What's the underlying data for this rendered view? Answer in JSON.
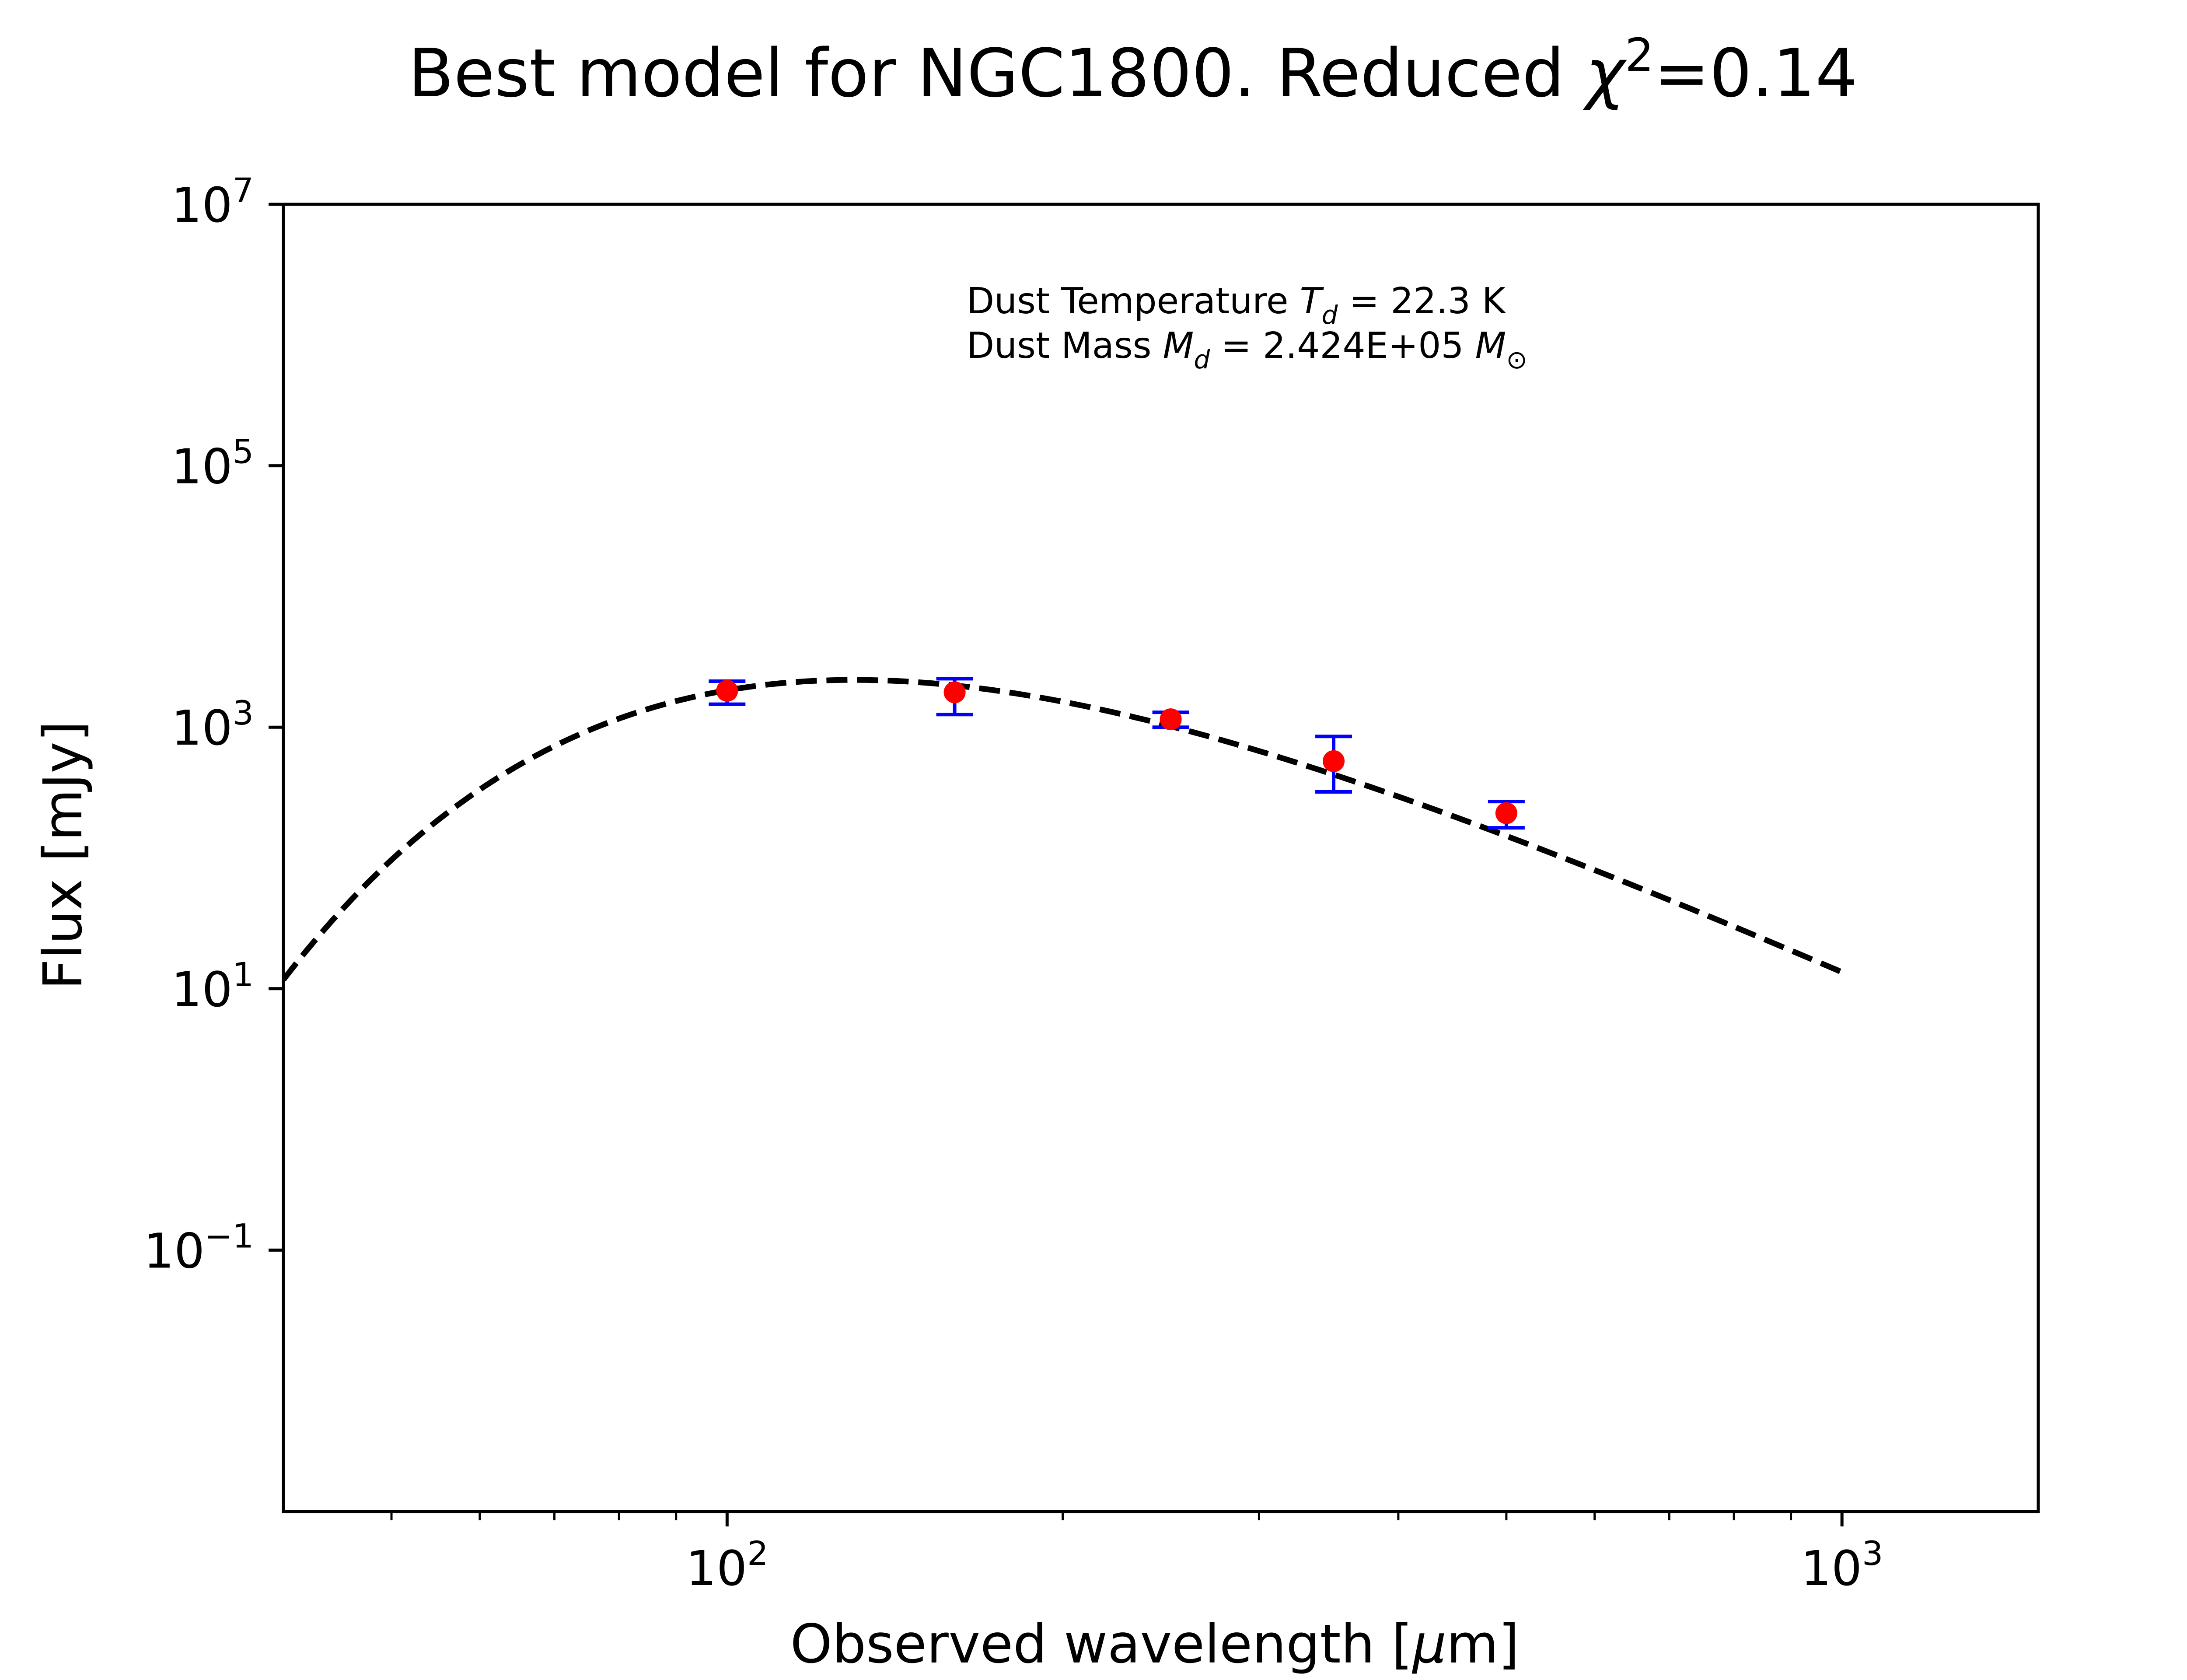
{
  "chart_data": {
    "type": "scatter",
    "title": {
      "prefix": "Best model for NGC1800. Reduced ",
      "symbol": "χ",
      "superscript": "2",
      "suffix": "=0.14"
    },
    "xlabel": {
      "prefix": "Observed wavelength [",
      "symbol": "μ",
      "suffix": "m]"
    },
    "ylabel": "Flux [mJy]",
    "xscale": "log",
    "yscale": "log",
    "xlim": [
      40,
      1500
    ],
    "ylim": [
      0.001,
      10000000
    ],
    "grid": false,
    "x_ticks": [
      {
        "value": 100,
        "base": "10",
        "exp": "2"
      },
      {
        "value": 1000,
        "base": "10",
        "exp": "3"
      }
    ],
    "y_ticks": [
      {
        "value": 0.1,
        "base": "10",
        "exp": "−1"
      },
      {
        "value": 10,
        "base": "10",
        "exp": "1"
      },
      {
        "value": 1000,
        "base": "10",
        "exp": "3"
      },
      {
        "value": 100000,
        "base": "10",
        "exp": "5"
      },
      {
        "value": 10000000,
        "base": "10",
        "exp": "7"
      }
    ],
    "annotations": {
      "temperature": {
        "prefix": "Dust Temperature ",
        "symbol": "T",
        "subscript": "d",
        "suffix": " = 22.3 K"
      },
      "mass": {
        "prefix": "Dust Mass ",
        "symbol": "M",
        "subscript": "d",
        "middle": " = 2.424E+05 ",
        "unit_symbol": "M",
        "unit_subscript": "⊙"
      }
    },
    "series": [
      {
        "type": "errorbar",
        "marker_color": "#ff0000",
        "errorbar_color": "#0000ff",
        "points": [
          {
            "x": 100,
            "y": 1900,
            "ylo": 1500,
            "yhi": 2250
          },
          {
            "x": 160,
            "y": 1850,
            "ylo": 1250,
            "yhi": 2350
          },
          {
            "x": 250,
            "y": 1150,
            "ylo": 1000,
            "yhi": 1300
          },
          {
            "x": 350,
            "y": 550,
            "ylo": 320,
            "yhi": 850
          },
          {
            "x": 500,
            "y": 220,
            "ylo": 170,
            "yhi": 270
          }
        ]
      },
      {
        "type": "line",
        "style": "dashed",
        "color": "#000000",
        "model": {
          "temperature_K": 22.3,
          "beta": 2.0,
          "peak_flux_mJy": 2300,
          "x_range": [
            40,
            1000
          ]
        }
      }
    ]
  }
}
